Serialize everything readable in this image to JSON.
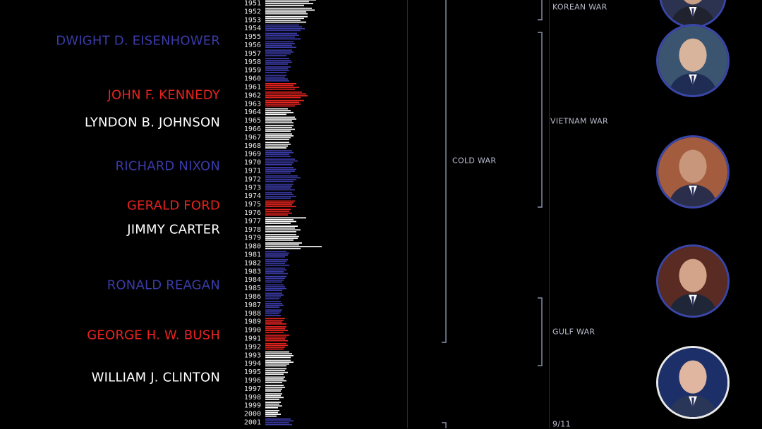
{
  "presidents": [
    {
      "name": "DWIGHT D. EISENHOWER",
      "color": "#3b3ba8",
      "year": 1955.5
    },
    {
      "name": "JOHN F. KENNEDY",
      "color": "#e8231f",
      "year": 1962
    },
    {
      "name": "LYNDON B. JOHNSON",
      "color": "#ffffff",
      "year": 1965.3
    },
    {
      "name": "RICHARD NIXON",
      "color": "#3b3ba8",
      "year": 1970.5
    },
    {
      "name": "GERALD FORD",
      "color": "#e8231f",
      "year": 1975.2
    },
    {
      "name": "JIMMY CARTER",
      "color": "#ffffff",
      "year": 1978.1
    },
    {
      "name": "RONALD REAGAN",
      "color": "#3b3ba8",
      "year": 1984.7
    },
    {
      "name": "GEORGE H. W. BUSH",
      "color": "#e8231f",
      "year": 1990.7
    },
    {
      "name": "WILLIAM J. CLINTON",
      "color": "#ffffff",
      "year": 1995.7
    }
  ],
  "wars": {
    "cold_war": "COLD WAR",
    "korean_war": "KOREAN WAR",
    "vietnam_war": "VIETNAM WAR",
    "gulf_war": "GULF WAR",
    "nine_eleven": "9/11"
  },
  "portraits": [
    {
      "name": "eisenhower",
      "year": 1953,
      "border": "#3a46a8"
    },
    {
      "name": "eisenhower-2",
      "year": 1956.3,
      "border": "#3a46a8"
    },
    {
      "name": "nixon",
      "year": 1971.3,
      "border": "#3a46a8"
    },
    {
      "name": "reagan",
      "year": 1983.2,
      "border": "#3a46a8"
    },
    {
      "name": "clinton",
      "year": 1994.8,
      "border": "#e8e8e8"
    }
  ],
  "chart_data": {
    "type": "bar",
    "orientation": "horizontal",
    "years": [
      1951,
      1952,
      1953,
      1954,
      1955,
      1956,
      1957,
      1958,
      1959,
      1960,
      1961,
      1962,
      1963,
      1964,
      1965,
      1966,
      1967,
      1968,
      1969,
      1970,
      1971,
      1972,
      1973,
      1974,
      1975,
      1976,
      1977,
      1978,
      1979,
      1980,
      1981,
      1982,
      1983,
      1984,
      1985,
      1986,
      1987,
      1988,
      1989,
      1990,
      1991,
      1992,
      1993,
      1994,
      1995,
      1996,
      1997,
      1998,
      1999,
      2000,
      2001
    ],
    "party_colors": {
      "D_JFK_style": "#e8231f",
      "white": "#ffffff",
      "blue": "#3b3ba8"
    },
    "bar_colors": [
      "#ffffff",
      "#ffffff",
      "#ffffff",
      "#3b3ba8",
      "#3b3ba8",
      "#3b3ba8",
      "#3b3ba8",
      "#3b3ba8",
      "#3b3ba8",
      "#3b3ba8",
      "#e8231f",
      "#e8231f",
      "#e8231f",
      "#ffffff",
      "#ffffff",
      "#ffffff",
      "#ffffff",
      "#ffffff",
      "#3b3ba8",
      "#3b3ba8",
      "#3b3ba8",
      "#3b3ba8",
      "#3b3ba8",
      "#3b3ba8",
      "#e8231f",
      "#e8231f",
      "#ffffff",
      "#ffffff",
      "#ffffff",
      "#ffffff",
      "#3b3ba8",
      "#3b3ba8",
      "#3b3ba8",
      "#3b3ba8",
      "#3b3ba8",
      "#3b3ba8",
      "#3b3ba8",
      "#3b3ba8",
      "#e8231f",
      "#e8231f",
      "#e8231f",
      "#e8231f",
      "#ffffff",
      "#ffffff",
      "#ffffff",
      "#ffffff",
      "#ffffff",
      "#ffffff",
      "#ffffff",
      "#ffffff",
      "#3b3ba8"
    ],
    "bars_per_year": [
      [
        72,
        62,
        68,
        55
      ],
      [
        66,
        70,
        58,
        60
      ],
      [
        60,
        55,
        50,
        58
      ],
      [
        48,
        52,
        56,
        50
      ],
      [
        45,
        48,
        42,
        50
      ],
      [
        40,
        42,
        38,
        44
      ],
      [
        38,
        40,
        36,
        30
      ],
      [
        34,
        36,
        38,
        32
      ],
      [
        36,
        32,
        34,
        30
      ],
      [
        30,
        28,
        32,
        34
      ],
      [
        44,
        40,
        48,
        42
      ],
      [
        52,
        58,
        60,
        50
      ],
      [
        55,
        48,
        50,
        42
      ],
      [
        32,
        36,
        40,
        30
      ],
      [
        42,
        44,
        38,
        40
      ],
      [
        40,
        38,
        42,
        36
      ],
      [
        38,
        40,
        36,
        34
      ],
      [
        34,
        36,
        32,
        30
      ],
      [
        38,
        40,
        34,
        36
      ],
      [
        42,
        46,
        40,
        38
      ],
      [
        40,
        44,
        42,
        36
      ],
      [
        46,
        50,
        44,
        40
      ],
      [
        40,
        38,
        36,
        42
      ],
      [
        38,
        40,
        44,
        36
      ],
      [
        42,
        40,
        38,
        44
      ],
      [
        36,
        34,
        38,
        32
      ],
      [
        58,
        40,
        44,
        36
      ],
      [
        46,
        42,
        50,
        44
      ],
      [
        44,
        48,
        46,
        40
      ],
      [
        52,
        48,
        80,
        50
      ],
      [
        30,
        34,
        32,
        28
      ],
      [
        32,
        30,
        28,
        34
      ],
      [
        28,
        30,
        26,
        32
      ],
      [
        30,
        28,
        26,
        24
      ],
      [
        26,
        28,
        30,
        24
      ],
      [
        24,
        26,
        22,
        20
      ],
      [
        22,
        24,
        26,
        20
      ],
      [
        24,
        22,
        20,
        22
      ],
      [
        28,
        26,
        24,
        30
      ],
      [
        30,
        28,
        32,
        26
      ],
      [
        34,
        30,
        28,
        32
      ],
      [
        30,
        32,
        28,
        26
      ],
      [
        34,
        38,
        40,
        36
      ],
      [
        36,
        40,
        34,
        30
      ],
      [
        30,
        28,
        32,
        26
      ],
      [
        28,
        26,
        30,
        24
      ],
      [
        26,
        28,
        24,
        22
      ],
      [
        24,
        22,
        26,
        20
      ],
      [
        22,
        20,
        24,
        18
      ],
      [
        20,
        18,
        22,
        16
      ],
      [
        36,
        40,
        34,
        38
      ]
    ]
  }
}
